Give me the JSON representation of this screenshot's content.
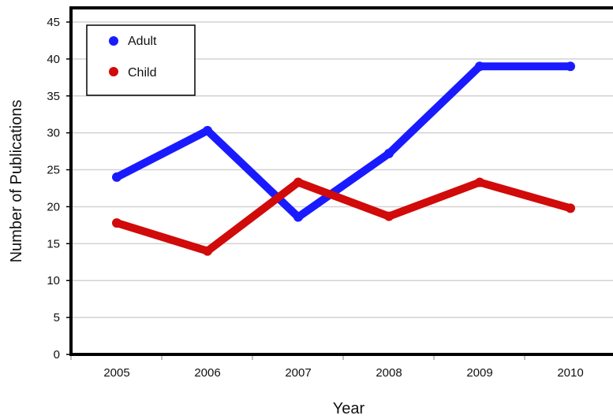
{
  "chart_data": {
    "type": "line",
    "title": "",
    "xlabel": "Year",
    "ylabel": "Number of Publications",
    "x": [
      "2005",
      "2006",
      "2007",
      "2008",
      "2009",
      "2010"
    ],
    "ylim": [
      0,
      45
    ],
    "yticks": [
      "0",
      "5",
      "10",
      "15",
      "20",
      "25",
      "30",
      "35",
      "40",
      "45"
    ],
    "grid": true,
    "legend": "top-left",
    "series": [
      {
        "name": "Adult",
        "color": "#1a1aff",
        "values": [
          24,
          30.3,
          18.6,
          27.2,
          39,
          39
        ]
      },
      {
        "name": "Child",
        "color": "#d10a0a",
        "values": [
          17.8,
          14,
          23.3,
          18.7,
          23.3,
          19.8
        ]
      }
    ]
  }
}
